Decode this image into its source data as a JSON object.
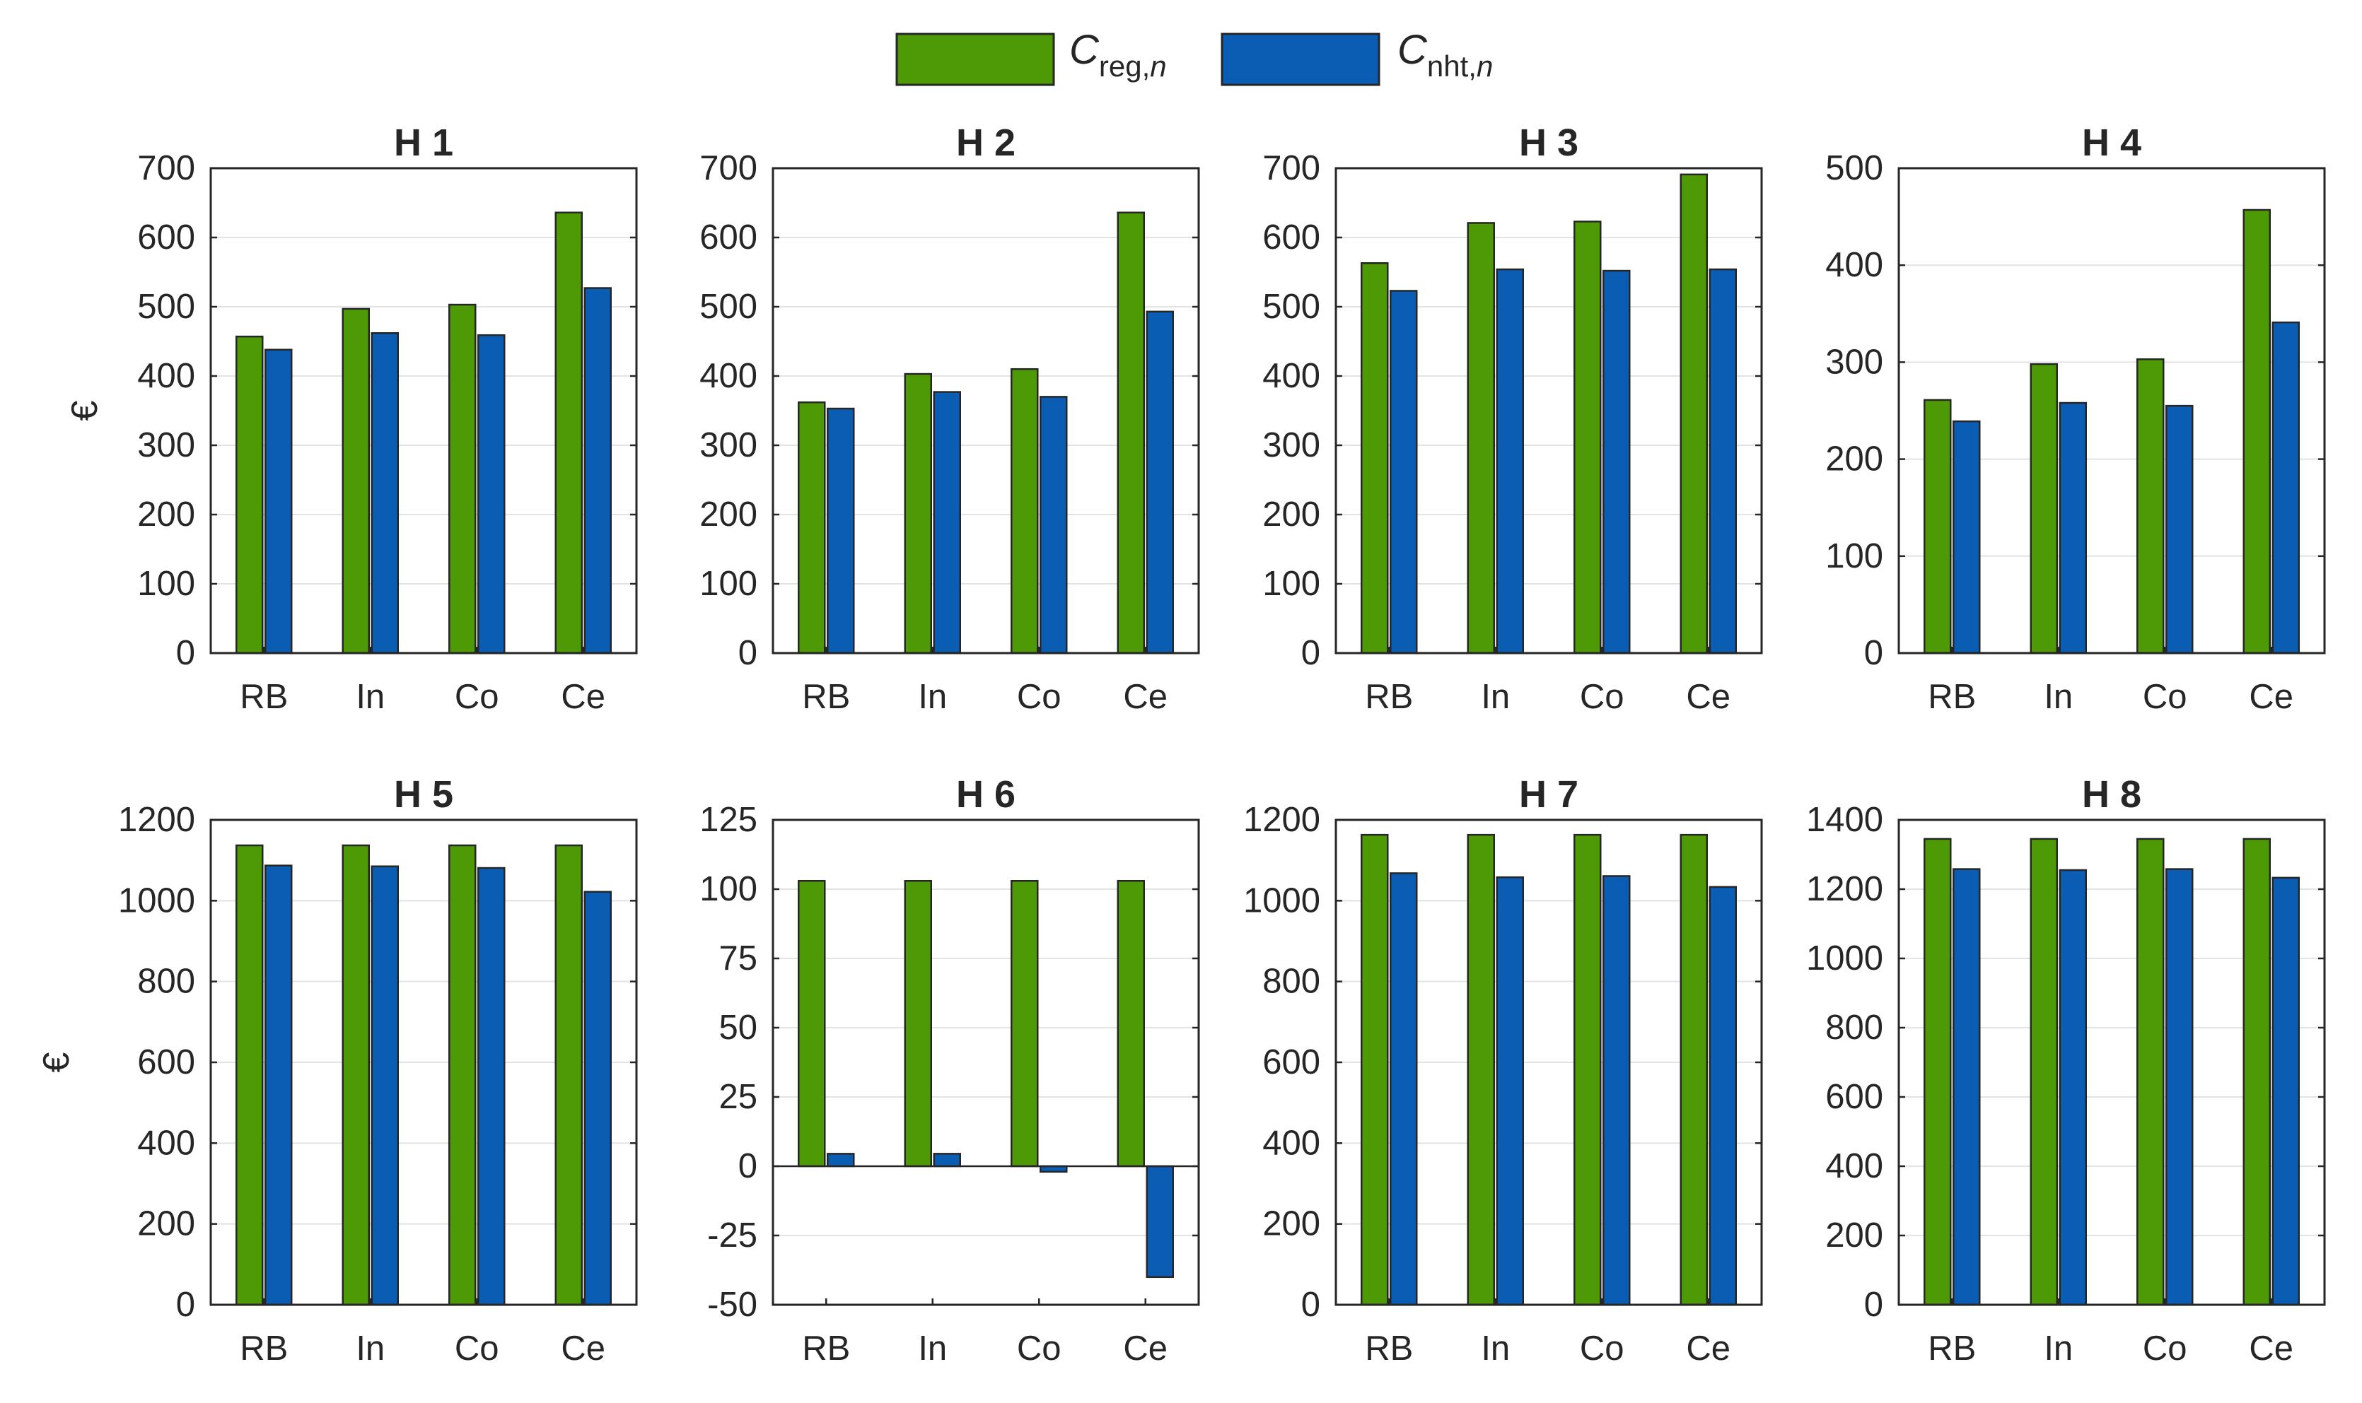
{
  "legend": {
    "series": [
      {
        "symbol": "C",
        "subscript": "reg,",
        "subscript_italic": "n",
        "color": "#4e9a06"
      },
      {
        "symbol": "C",
        "subscript": "nht,",
        "subscript_italic": "n",
        "color": "#0b5cb3"
      }
    ]
  },
  "chart_data": [
    {
      "type": "bar",
      "title": "H 1",
      "ylabel": "€",
      "categories": [
        "RB",
        "In",
        "Co",
        "Ce"
      ],
      "ylim": [
        0,
        700
      ],
      "yticks": [
        0,
        100,
        200,
        300,
        400,
        500,
        600,
        700
      ],
      "series": [
        {
          "name": "C_reg,n",
          "values": [
            457,
            497,
            503,
            636
          ]
        },
        {
          "name": "C_nht,n",
          "values": [
            438,
            462,
            459,
            527
          ]
        }
      ]
    },
    {
      "type": "bar",
      "title": "H 2",
      "ylabel": "",
      "categories": [
        "RB",
        "In",
        "Co",
        "Ce"
      ],
      "ylim": [
        0,
        700
      ],
      "yticks": [
        0,
        100,
        200,
        300,
        400,
        500,
        600,
        700
      ],
      "series": [
        {
          "name": "C_reg,n",
          "values": [
            362,
            403,
            410,
            636
          ]
        },
        {
          "name": "C_nht,n",
          "values": [
            353,
            377,
            370,
            493
          ]
        }
      ]
    },
    {
      "type": "bar",
      "title": "H 3",
      "ylabel": "",
      "categories": [
        "RB",
        "In",
        "Co",
        "Ce"
      ],
      "ylim": [
        0,
        700
      ],
      "yticks": [
        0,
        100,
        200,
        300,
        400,
        500,
        600,
        700
      ],
      "series": [
        {
          "name": "C_reg,n",
          "values": [
            563,
            621,
            623,
            691
          ]
        },
        {
          "name": "C_nht,n",
          "values": [
            523,
            554,
            552,
            554
          ]
        }
      ]
    },
    {
      "type": "bar",
      "title": "H 4",
      "ylabel": "",
      "categories": [
        "RB",
        "In",
        "Co",
        "Ce"
      ],
      "ylim": [
        0,
        500
      ],
      "yticks": [
        0,
        100,
        200,
        300,
        400,
        500
      ],
      "series": [
        {
          "name": "C_reg,n",
          "values": [
            261,
            298,
            303,
            457
          ]
        },
        {
          "name": "C_nht,n",
          "values": [
            239,
            258,
            255,
            341
          ]
        }
      ]
    },
    {
      "type": "bar",
      "title": "H 5",
      "ylabel": "€",
      "categories": [
        "RB",
        "In",
        "Co",
        "Ce"
      ],
      "ylim": [
        0,
        1200
      ],
      "yticks": [
        0,
        200,
        400,
        600,
        800,
        1000,
        1200
      ],
      "series": [
        {
          "name": "C_reg,n",
          "values": [
            1137,
            1137,
            1137,
            1137
          ]
        },
        {
          "name": "C_nht,n",
          "values": [
            1087,
            1085,
            1081,
            1022
          ]
        }
      ]
    },
    {
      "type": "bar",
      "title": "H 6",
      "ylabel": "",
      "categories": [
        "RB",
        "In",
        "Co",
        "Ce"
      ],
      "ylim": [
        -50,
        125
      ],
      "yticks": [
        -50,
        -25,
        0,
        25,
        50,
        75,
        100,
        125
      ],
      "series": [
        {
          "name": "C_reg,n",
          "values": [
            103,
            103,
            103,
            103
          ]
        },
        {
          "name": "C_nht,n",
          "values": [
            4.5,
            4.5,
            -2,
            -40
          ]
        }
      ]
    },
    {
      "type": "bar",
      "title": "H 7",
      "ylabel": "",
      "categories": [
        "RB",
        "In",
        "Co",
        "Ce"
      ],
      "ylim": [
        0,
        1200
      ],
      "yticks": [
        0,
        200,
        400,
        600,
        800,
        1000,
        1200
      ],
      "series": [
        {
          "name": "C_reg,n",
          "values": [
            1163,
            1163,
            1163,
            1163
          ]
        },
        {
          "name": "C_nht,n",
          "values": [
            1068,
            1058,
            1061,
            1034
          ]
        }
      ]
    },
    {
      "type": "bar",
      "title": "H 8",
      "ylabel": "",
      "categories": [
        "RB",
        "In",
        "Co",
        "Ce"
      ],
      "ylim": [
        0,
        1400
      ],
      "yticks": [
        0,
        200,
        400,
        600,
        800,
        1000,
        1200,
        1400
      ],
      "series": [
        {
          "name": "C_reg,n",
          "values": [
            1345,
            1345,
            1345,
            1345
          ]
        },
        {
          "name": "C_nht,n",
          "values": [
            1258,
            1255,
            1258,
            1233
          ]
        }
      ]
    }
  ]
}
